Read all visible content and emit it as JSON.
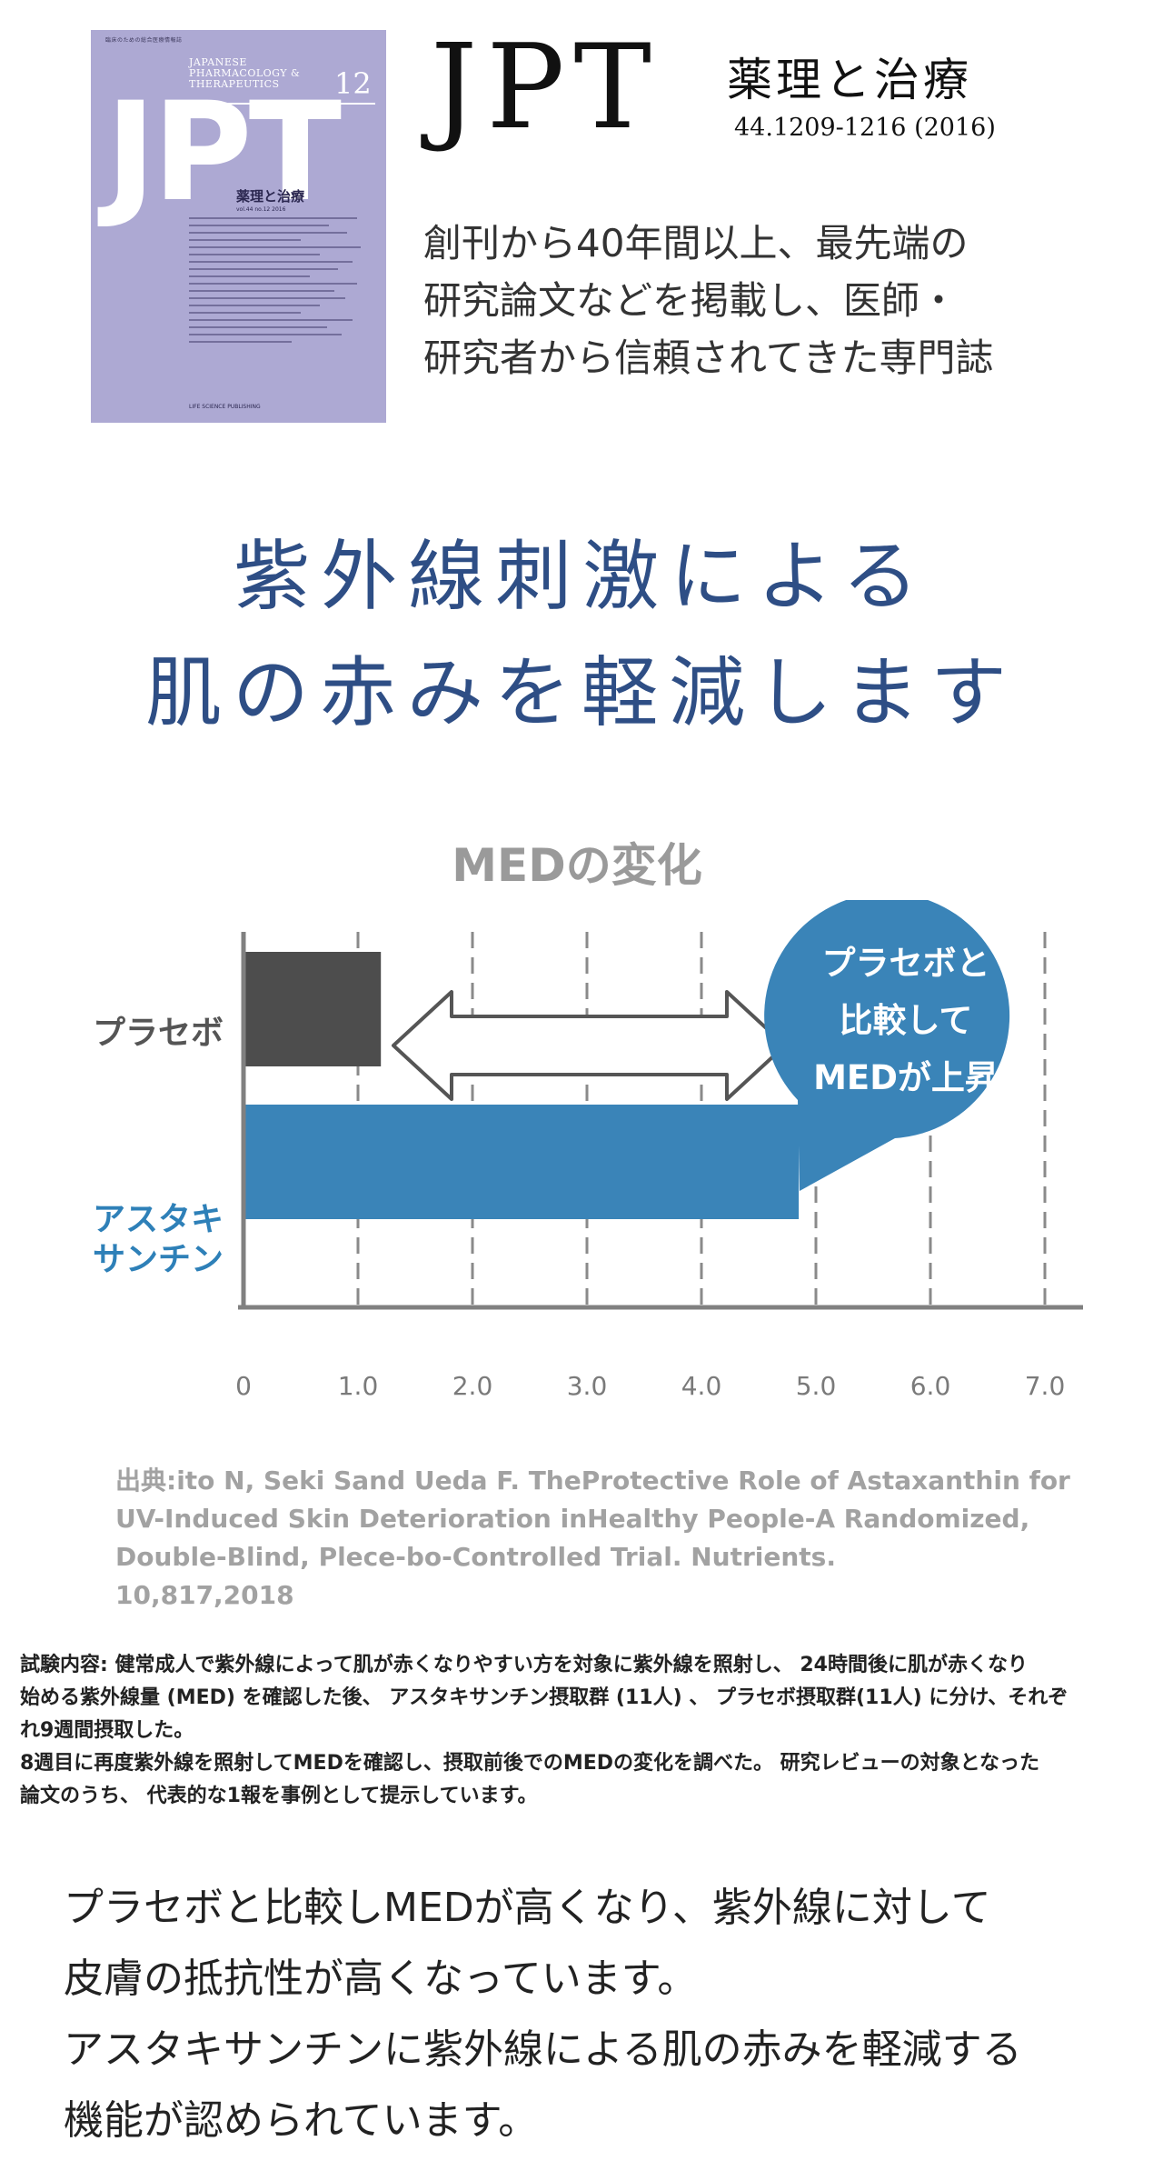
{
  "journal": {
    "cover": {
      "topline": "臨床のための総合医療情報誌",
      "title_en_lines": [
        "JAPANESE",
        "PHARMACOLOGY &",
        "THERAPEUTICS"
      ],
      "issue_number": "12",
      "logo": "JPT",
      "title_jp": "薬理と治療",
      "volume": "vol.44 no.12 2016",
      "publisher": "LIFE SCIENCE PUBLISHING"
    },
    "logo": "JPT",
    "title": "薬理と治療",
    "citation": "44.1209-1216 (2016)",
    "description_lines": [
      "創刊から40年間以上、最先端の",
      "研究論文などを掲載し、医師・",
      "研究者から信頼されてきた専門誌"
    ]
  },
  "headline_lines": [
    "紫外線刺激による",
    "肌の赤みを軽減します"
  ],
  "chart_data": {
    "type": "bar",
    "orientation": "horizontal",
    "title": "MEDの変化",
    "categories": [
      "プラセボ",
      "アスタキサンチン"
    ],
    "category_label_lines": [
      [
        "プラセボ"
      ],
      [
        "アスタキ",
        "サンチン"
      ]
    ],
    "values": [
      1.2,
      4.85
    ],
    "bar_colors": [
      "#4d4d4d",
      "#3a84b8"
    ],
    "category_label_colors": [
      "#555555",
      "#2e80b8"
    ],
    "x_ticks": [
      "0",
      "1.0",
      "2.0",
      "3.0",
      "4.0",
      "5.0",
      "6.0",
      "7.0"
    ],
    "xlim": [
      0,
      7
    ],
    "grid": true,
    "annotation_lines": [
      "プラセボと",
      "比較して",
      "MEDが上昇"
    ],
    "annotation_color": "#3a84b8"
  },
  "source_lines": [
    "出典:ito N, Seki Sand Ueda F. TheProtective Role of Astaxanthin for",
    "UV-Induced Skin Deterioration inHealthy People-A Randomized,",
    "Double-Blind, Plece-bo-Controlled Trial. Nutrients.",
    "10,817,2018"
  ],
  "trial_note_lines": [
    "試験内容: 健常成人で紫外線によって肌が赤くなりやすい方を対象に紫外線を照射し、 24時間後に肌が赤くなり",
    "始める紫外線量 (MED) を確認した後、 アスタキサンチン摂取群 (11人) 、 プラセボ摂取群(11人) に分け、それぞ",
    "れ9週間摂取した。",
    "8週目に再度紫外線を照射してMEDを確認し、摂取前後でのMEDの変化を調べた。 研究レビューの対象となった",
    "論文のうち、 代表的な1報を事例として提示しています。"
  ],
  "conclusion_lines": [
    "プラセボと比較しMEDが高くなり、紫外線に対して",
    "皮膚の抵抗性が高くなっています。",
    "アスタキサンチンに紫外線による肌の赤みを軽減する",
    "機能が認められています。"
  ]
}
